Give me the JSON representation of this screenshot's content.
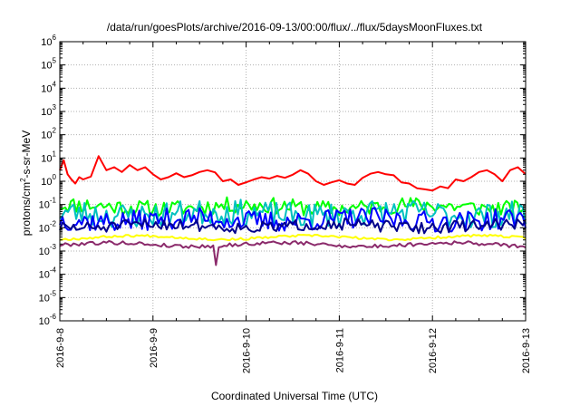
{
  "chart_data": {
    "type": "line",
    "title": "/data/run/goesPlots/archive/2016-09-13/00:00/flux/../flux/5daysMoonFluxes.txt",
    "xlabel": "Coordinated Universal Time (UTC)",
    "ylabel": {
      "prefix": "protons/cm",
      "sup": "2",
      "suffix": "-s-sr-MeV"
    },
    "yscale": "log",
    "ylim": [
      1e-06,
      1000000.0
    ],
    "y_ticks": [
      {
        "base": "10",
        "exp": "-6"
      },
      {
        "base": "10",
        "exp": "-5"
      },
      {
        "base": "10",
        "exp": "-4"
      },
      {
        "base": "10",
        "exp": "-3"
      },
      {
        "base": "10",
        "exp": "-2"
      },
      {
        "base": "10",
        "exp": "-1"
      },
      {
        "base": "10",
        "exp": "0"
      },
      {
        "base": "10",
        "exp": "1"
      },
      {
        "base": "10",
        "exp": "2"
      },
      {
        "base": "10",
        "exp": "3"
      },
      {
        "base": "10",
        "exp": "4"
      },
      {
        "base": "10",
        "exp": "5"
      },
      {
        "base": "10",
        "exp": "6"
      }
    ],
    "xlim": [
      "2016-09-08 00:00",
      "2016-09-13 00:00"
    ],
    "x_ticks": [
      "2016-9-8",
      "2016-9-9",
      "2016-9-10",
      "2016-9-11",
      "2016-9-12",
      "2016-9-13"
    ],
    "grid": true,
    "series": [
      {
        "color": "#ff0000",
        "style": "smooth",
        "x_hours": [
          0,
          1,
          2,
          3,
          4,
          5,
          6,
          8,
          10,
          12,
          14,
          16,
          18,
          20,
          22,
          24,
          26,
          28,
          30,
          32,
          34,
          36,
          38,
          40,
          42,
          44,
          46,
          48,
          50,
          52,
          54,
          56,
          58,
          60,
          62,
          64,
          66,
          68,
          70,
          72,
          74,
          76,
          78,
          80,
          82,
          84,
          86,
          88,
          90,
          92,
          94,
          96,
          98,
          100,
          102,
          104,
          106,
          108,
          110,
          112,
          114,
          116,
          118,
          120
        ],
        "y": [
          3,
          8,
          2,
          1.2,
          0.8,
          1.5,
          1.2,
          1.6,
          12,
          3,
          4,
          2.5,
          5,
          3,
          4,
          2,
          1.2,
          1.5,
          2.2,
          1.5,
          1.8,
          2.5,
          3,
          2.4,
          1,
          1.2,
          0.7,
          0.9,
          1.2,
          1.5,
          1.3,
          1.7,
          1.4,
          1.9,
          3,
          2.1,
          1,
          0.7,
          0.9,
          1.1,
          0.8,
          0.7,
          1.4,
          2.1,
          2.5,
          2,
          1.8,
          0.9,
          0.8,
          0.5,
          0.45,
          0.4,
          0.6,
          0.5,
          1.2,
          1,
          1.5,
          2.5,
          3,
          2,
          1,
          3,
          4,
          2
        ]
      },
      {
        "color": "#00ff00",
        "base": 0.08,
        "amp": 0.35,
        "seed": 11
      },
      {
        "color": "#00c0c0",
        "base": 0.04,
        "amp": 0.55,
        "seed": 23
      },
      {
        "color": "#0000ff",
        "base": 0.022,
        "amp": 0.45,
        "seed": 37
      },
      {
        "color": "#00008b",
        "base": 0.012,
        "amp": 0.25,
        "seed": 51
      },
      {
        "color": "#ffff00",
        "base": 0.0038,
        "amp": 0.05,
        "seed": 67
      },
      {
        "color": "#8b2a6b",
        "base": 0.0019,
        "amp": 0.08,
        "seed": 79,
        "dip_hour": 40,
        "dip_value": 0.00025
      }
    ]
  }
}
